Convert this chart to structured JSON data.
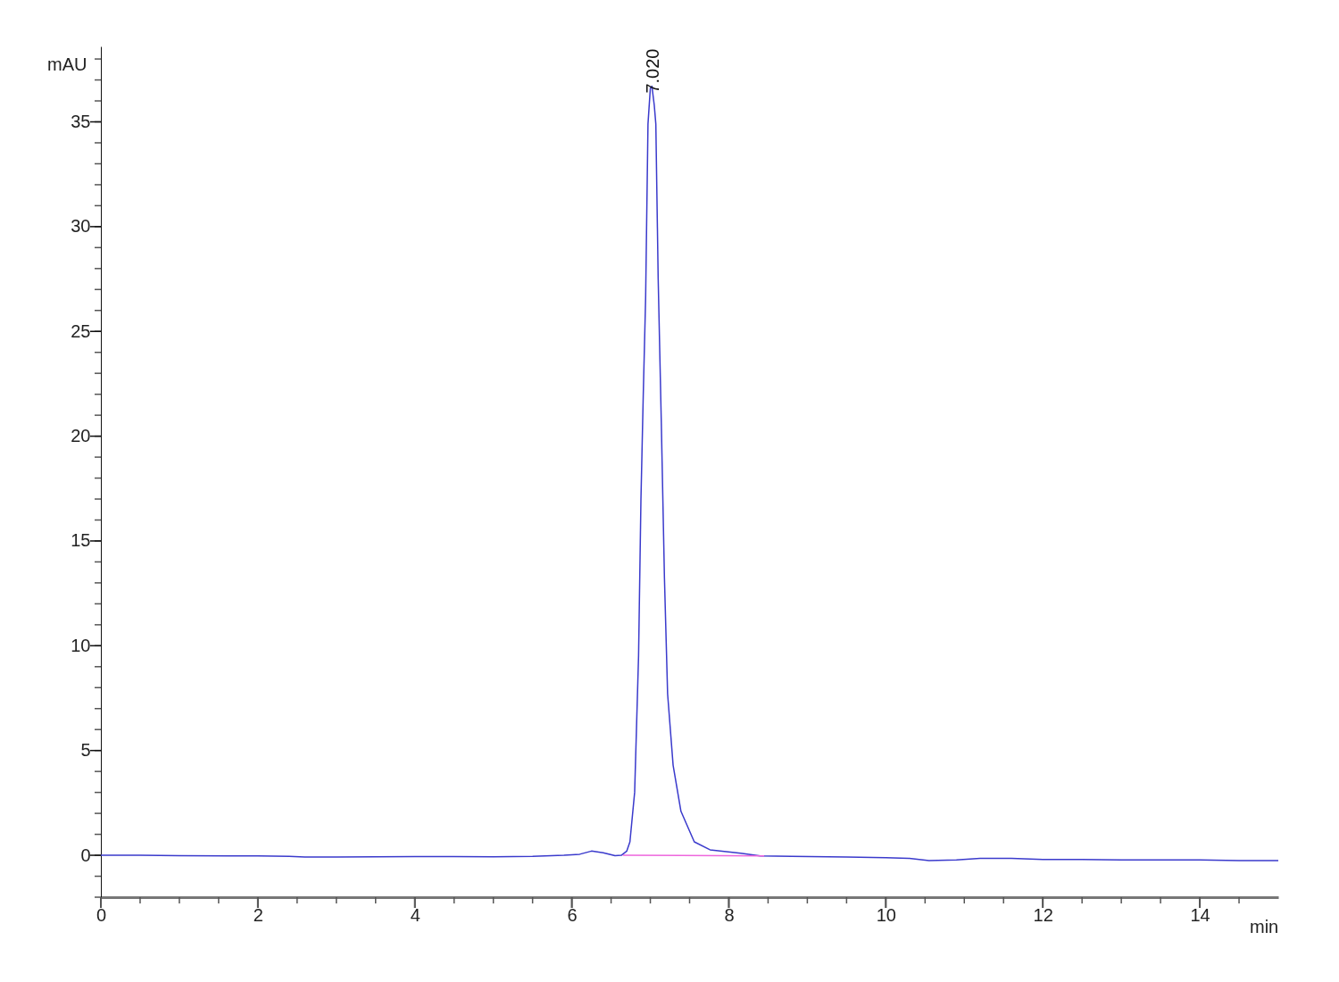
{
  "chart_data": {
    "type": "line",
    "xlabel": "min",
    "ylabel": "mAU",
    "xlim": [
      0,
      15
    ],
    "ylim": [
      -2,
      38.6
    ],
    "xticks": [
      0,
      {
        "value": 0.5,
        "label": null
      },
      {
        "value": 1,
        "label": null
      },
      {
        "value": 1.5,
        "label": null
      },
      2,
      {
        "value": 2.5,
        "label": null
      },
      {
        "value": 3,
        "label": null
      },
      {
        "value": 3.5,
        "label": null
      },
      4,
      {
        "value": 4.5,
        "label": null
      },
      {
        "value": 5,
        "label": null
      },
      {
        "value": 5.5,
        "label": null
      },
      6,
      {
        "value": 6.5,
        "label": null
      },
      {
        "value": 7,
        "label": null
      },
      {
        "value": 7.5,
        "label": null
      },
      8,
      {
        "value": 8.5,
        "label": null
      },
      {
        "value": 9,
        "label": null
      },
      {
        "value": 9.5,
        "label": null
      },
      10,
      {
        "value": 10.5,
        "label": null
      },
      {
        "value": 11,
        "label": null
      },
      {
        "value": 11.5,
        "label": null
      },
      12,
      {
        "value": 12.5,
        "label": null
      },
      {
        "value": 13,
        "label": null
      },
      {
        "value": 13.5,
        "label": null
      },
      14,
      {
        "value": 14.5,
        "label": null
      }
    ],
    "yticks": [
      {
        "value": -2,
        "label": null
      },
      {
        "value": -1,
        "label": null
      },
      0,
      {
        "value": 1,
        "label": null
      },
      {
        "value": 2,
        "label": null
      },
      {
        "value": 3,
        "label": null
      },
      {
        "value": 4,
        "label": null
      },
      5,
      {
        "value": 6,
        "label": null
      },
      {
        "value": 7,
        "label": null
      },
      {
        "value": 8,
        "label": null
      },
      {
        "value": 9,
        "label": null
      },
      10,
      {
        "value": 11,
        "label": null
      },
      {
        "value": 12,
        "label": null
      },
      {
        "value": 13,
        "label": null
      },
      {
        "value": 14,
        "label": null
      },
      15,
      {
        "value": 16,
        "label": null
      },
      {
        "value": 17,
        "label": null
      },
      {
        "value": 18,
        "label": null
      },
      {
        "value": 19,
        "label": null
      },
      20,
      {
        "value": 21,
        "label": null
      },
      {
        "value": 22,
        "label": null
      },
      {
        "value": 23,
        "label": null
      },
      {
        "value": 24,
        "label": null
      },
      25,
      {
        "value": 26,
        "label": null
      },
      {
        "value": 27,
        "label": null
      },
      {
        "value": 28,
        "label": null
      },
      {
        "value": 29,
        "label": null
      },
      30,
      {
        "value": 31,
        "label": null
      },
      {
        "value": 32,
        "label": null
      },
      {
        "value": 33,
        "label": null
      },
      {
        "value": 34,
        "label": null
      },
      35,
      {
        "value": 36,
        "label": null
      },
      {
        "value": 37,
        "label": null
      },
      {
        "value": 38,
        "label": null
      }
    ],
    "series": [
      {
        "color": "#3a3acc",
        "x": [
          0,
          0.5,
          1,
          2,
          2.4,
          2.6,
          3,
          4,
          5,
          5.5,
          5.9,
          6.1,
          6.25,
          6.4,
          6.55,
          6.63,
          6.7,
          6.74,
          6.8,
          6.85,
          6.88,
          6.91,
          6.94,
          6.97,
          7.0,
          7.02,
          7.05,
          7.07,
          7.1,
          7.14,
          7.18,
          7.22,
          7.29,
          7.39,
          7.56,
          7.76,
          8.15,
          8.4,
          8.8,
          9.5,
          10,
          10.3,
          10.55,
          10.9,
          11.2,
          11.6,
          12,
          12.5,
          13,
          14,
          14.5,
          15
        ],
        "values": [
          0,
          0,
          -0.02,
          -0.03,
          -0.05,
          -0.08,
          -0.08,
          -0.06,
          -0.07,
          -0.05,
          0,
          0.05,
          0.2,
          0.12,
          -0.02,
          0,
          0.2,
          0.64,
          3.0,
          9.5,
          16.9,
          22,
          26.6,
          34.9,
          36.6,
          36.7,
          35.8,
          34.9,
          27.5,
          20.6,
          13.2,
          7.7,
          4.3,
          2.1,
          0.64,
          0.26,
          0.1,
          -0.03,
          -0.05,
          -0.08,
          -0.12,
          -0.15,
          -0.25,
          -0.22,
          -0.15,
          -0.15,
          -0.2,
          -0.2,
          -0.22,
          -0.22,
          -0.25,
          -0.25
        ]
      },
      {
        "color": "#ee66dd",
        "x": [
          6.65,
          8.45
        ],
        "values": [
          0,
          -0.03
        ]
      }
    ],
    "annotations": [
      {
        "text": "7.020",
        "x": 7.02,
        "y": 36.7
      }
    ],
    "legend": false
  }
}
